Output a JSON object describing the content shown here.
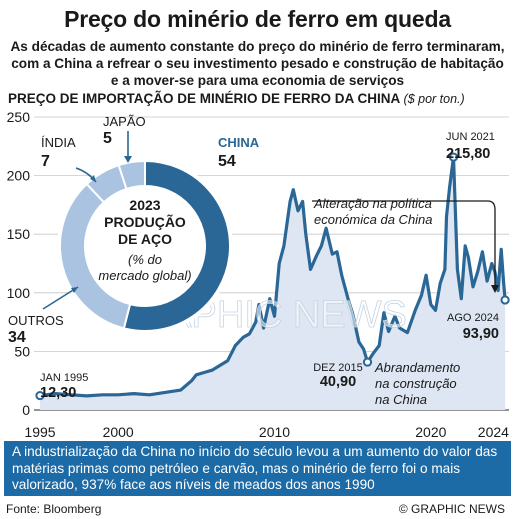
{
  "title": "Preço do minério de ferro em queda",
  "subtitle": "As décadas de aumento constante do preço do minério de ferro terminaram, com a China a refrear o seu investimento pesado e construção de habitação e a mover-se para uma economia de serviços",
  "chart_heading": "PREÇO DE IMPORTAÇÃO DE MINÉRIO DE FERRO DA CHINA",
  "chart_unit": "($ por ton.)",
  "footer_text": "A industrialização da China no início do século levou a um aumento do valor das matérias primas como petróleo e carvão, mas o minério de ferro foi o mais valorizado, 937% face aos níveis de meados dos anos 1990",
  "source": "Fonte: Bloomberg",
  "credit": "© GRAPHIC NEWS",
  "watermark": "GRAPHIC NEWS",
  "colors": {
    "line": "#2a6796",
    "area": "#dde6f2",
    "donut_dark": "#2a6796",
    "donut_light": "#a9c3e0",
    "footer_bg": "#1c6aa6"
  },
  "chart_data": [
    {
      "type": "area",
      "xlim": [
        1995,
        2025
      ],
      "ylim": [
        0,
        250
      ],
      "x_ticks": [
        "1995",
        "2000",
        "2010",
        "2020",
        "2024"
      ],
      "x_tick_values": [
        1995,
        2000,
        2010,
        2020,
        2024
      ],
      "y_ticks": [
        "0",
        "50",
        "100",
        "150",
        "200",
        "250"
      ],
      "y_tick_values": [
        0,
        50,
        100,
        150,
        200,
        250
      ],
      "series": [
        {
          "x": [
            1995,
            1996,
            1997,
            1998,
            1999,
            2000,
            2001,
            2002,
            2003,
            2004,
            2004.7,
            2005,
            2005.5,
            2006,
            2006.5,
            2007,
            2007.5,
            2008,
            2008.4,
            2008.8,
            2009,
            2009.3,
            2009.7,
            2010,
            2010.3,
            2010.6,
            2011,
            2011.2,
            2011.5,
            2011.8,
            2012,
            2012.3,
            2012.7,
            2013,
            2013.3,
            2013.7,
            2014,
            2014.3,
            2014.7,
            2015,
            2015.4,
            2015.7,
            2015.95,
            2016.3,
            2016.7,
            2017,
            2017.3,
            2017.7,
            2018,
            2018.5,
            2019,
            2019.4,
            2019.7,
            2020,
            2020.3,
            2020.6,
            2020.9,
            2021,
            2021.2,
            2021.45,
            2021.7,
            2021.95,
            2022.2,
            2022.4,
            2022.7,
            2023,
            2023.3,
            2023.6,
            2023.9,
            2024.1,
            2024.3,
            2024.5,
            2024.65,
            2024.75
          ],
          "values": [
            12.3,
            14,
            13,
            12,
            13,
            13,
            14,
            13,
            15,
            17,
            25,
            30,
            32,
            34,
            38,
            42,
            55,
            62,
            65,
            75,
            90,
            70,
            95,
            80,
            125,
            140,
            178,
            188,
            170,
            178,
            150,
            120,
            132,
            140,
            155,
            133,
            135,
            115,
            95,
            82,
            58,
            52,
            40.9,
            48,
            55,
            83,
            67,
            80,
            70,
            66,
            85,
            98,
            115,
            90,
            85,
            108,
            120,
            165,
            190,
            215.8,
            120,
            95,
            140,
            130,
            105,
            118,
            135,
            110,
            125,
            118,
            102,
            137,
            110,
            93.9
          ]
        }
      ],
      "annotations": [
        {
          "date": "JAN 1995",
          "value": "12,30",
          "x": 1995,
          "y": 12.3
        },
        {
          "date": "DEZ 2015",
          "value": "40,90",
          "x": 2015.95,
          "y": 40.9
        },
        {
          "date": "JUN 2021",
          "value": "215,80",
          "x": 2021.45,
          "y": 215.8
        },
        {
          "date": "AGO 2024",
          "value": "93,90",
          "x": 2024.75,
          "y": 93.9
        }
      ],
      "notes": [
        {
          "lines": [
            "Alteração na política",
            "económica da China"
          ]
        },
        {
          "lines": [
            "Abrandamento",
            "na construção",
            "na China"
          ]
        }
      ]
    },
    {
      "type": "pie",
      "center_lines": [
        "2023",
        "PRODUÇÃO",
        "DE AÇO"
      ],
      "center_sub_lines": [
        "(% do",
        "mercado global)"
      ],
      "slices": [
        {
          "label": "CHINA",
          "value": 54
        },
        {
          "label": "OUTROS",
          "value": 34
        },
        {
          "label": "ÍNDIA",
          "value": 7
        },
        {
          "label": "JAPÃO",
          "value": 5
        }
      ]
    }
  ]
}
